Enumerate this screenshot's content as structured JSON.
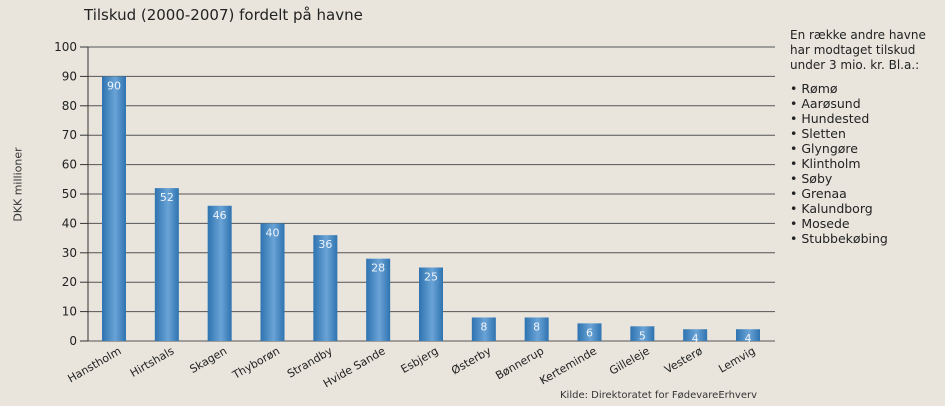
{
  "chart_data": {
    "type": "bar",
    "title": "Tilskud (2000-2007) fordelt på havne",
    "ylabel": "DKK millioner",
    "xlabel": "",
    "ylim": [
      0,
      100
    ],
    "yticks": [
      0,
      10,
      20,
      30,
      40,
      50,
      60,
      70,
      80,
      90,
      100
    ],
    "grid": true,
    "categories": [
      "Hanstholm",
      "Hirtshals",
      "Skagen",
      "Thyborøn",
      "Strandby",
      "Hvide Sande",
      "Esbjerg",
      "Østerby",
      "Bønnerup",
      "Kerteminde",
      "Gilleleje",
      "Vesterø",
      "Lemvig"
    ],
    "values": [
      90,
      52,
      46,
      40,
      36,
      28,
      25,
      8,
      8,
      6,
      5,
      4,
      4
    ],
    "data_labels": [
      "90",
      "52",
      "46",
      "40",
      "36",
      "28",
      "25",
      "8",
      "8",
      "6",
      "5",
      "4",
      "4"
    ],
    "bar_color": "#2e73b0"
  },
  "note": {
    "intro": "En række andre havne har modtaget tilskud under 3 mio. kr. Bl.a.:",
    "items": [
      "Rømø",
      "Aarøsund",
      "Hundested",
      "Sletten",
      "Glyngøre",
      "Klintholm",
      "Søby",
      "Grenaa",
      "Kalundborg",
      "Mosede",
      "Stubbekøbing"
    ]
  },
  "source": "Kilde: Direktoratet for FødevareErhverv"
}
